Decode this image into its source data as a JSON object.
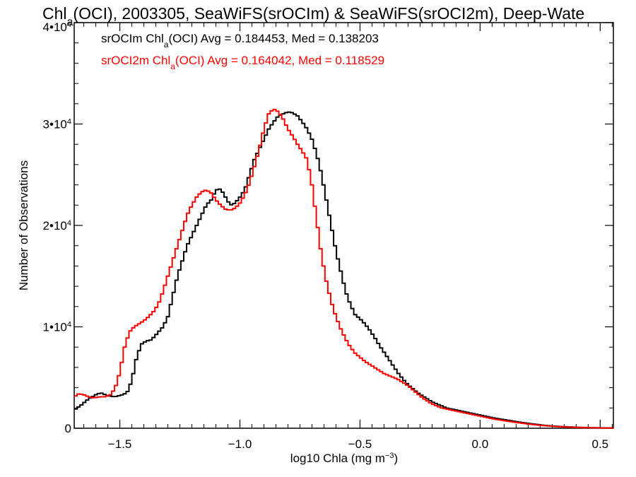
{
  "chart_data": {
    "type": "line",
    "title": "Chla(OCI), 2003305, SeaWiFS(srOCIm) & SeaWiFS(srOCI2m), Deep-Wate",
    "xlabel": "log10 Chla (mg m-3)",
    "ylabel": "Number of Observations",
    "xlim": [
      -1.69,
      0.555
    ],
    "ylim": [
      0,
      40000
    ],
    "x_ticks": [
      -1.5,
      -1.0,
      -0.5,
      0.0,
      0.5
    ],
    "x_tick_labels": [
      "−1.5",
      "−1.0",
      "−0.5",
      "0.0",
      "0.5"
    ],
    "y_ticks": [
      0,
      10000,
      20000,
      30000,
      40000
    ],
    "y_tick_labels": [
      "0",
      "1•10^4",
      "2•10^4",
      "3•10^4",
      "4•10^4"
    ],
    "grid": false,
    "legend_placement": "top-left",
    "series": [
      {
        "name": "srOCIm Chla(OCI) Avg = 0.184453, Med = 0.138203",
        "color": "#000000",
        "points": [
          [
            -1.69,
            1800
          ],
          [
            -1.66,
            2300
          ],
          [
            -1.63,
            2900
          ],
          [
            -1.6,
            3300
          ],
          [
            -1.58,
            3500
          ],
          [
            -1.55,
            3200
          ],
          [
            -1.52,
            3100
          ],
          [
            -1.49,
            3300
          ],
          [
            -1.47,
            3500
          ],
          [
            -1.45,
            4700
          ],
          [
            -1.43,
            7000
          ],
          [
            -1.41,
            8300
          ],
          [
            -1.39,
            8600
          ],
          [
            -1.37,
            8700
          ],
          [
            -1.35,
            9200
          ],
          [
            -1.32,
            10000
          ],
          [
            -1.3,
            11000
          ],
          [
            -1.28,
            13000
          ],
          [
            -1.26,
            15000
          ],
          [
            -1.24,
            16500
          ],
          [
            -1.22,
            18000
          ],
          [
            -1.2,
            19000
          ],
          [
            -1.18,
            20000
          ],
          [
            -1.16,
            21000
          ],
          [
            -1.14,
            22000
          ],
          [
            -1.12,
            22500
          ],
          [
            -1.1,
            23500
          ],
          [
            -1.08,
            23600
          ],
          [
            -1.06,
            22800
          ],
          [
            -1.04,
            22000
          ],
          [
            -1.02,
            22200
          ],
          [
            -1.0,
            22800
          ],
          [
            -0.98,
            23500
          ],
          [
            -0.96,
            25000
          ],
          [
            -0.94,
            26500
          ],
          [
            -0.92,
            27500
          ],
          [
            -0.9,
            28500
          ],
          [
            -0.88,
            29500
          ],
          [
            -0.86,
            30200
          ],
          [
            -0.84,
            30800
          ],
          [
            -0.82,
            31000
          ],
          [
            -0.8,
            31200
          ],
          [
            -0.78,
            31100
          ],
          [
            -0.76,
            30800
          ],
          [
            -0.74,
            30200
          ],
          [
            -0.72,
            29500
          ],
          [
            -0.7,
            28500
          ],
          [
            -0.68,
            27000
          ],
          [
            -0.66,
            25000
          ],
          [
            -0.64,
            22500
          ],
          [
            -0.62,
            20000
          ],
          [
            -0.6,
            17500
          ],
          [
            -0.58,
            15500
          ],
          [
            -0.56,
            13500
          ],
          [
            -0.54,
            12200
          ],
          [
            -0.52,
            11200
          ],
          [
            -0.5,
            10800
          ],
          [
            -0.48,
            10300
          ],
          [
            -0.46,
            9700
          ],
          [
            -0.44,
            9000
          ],
          [
            -0.42,
            8200
          ],
          [
            -0.4,
            7500
          ],
          [
            -0.38,
            6800
          ],
          [
            -0.36,
            6100
          ],
          [
            -0.34,
            5400
          ],
          [
            -0.32,
            4800
          ],
          [
            -0.3,
            4300
          ],
          [
            -0.28,
            3900
          ],
          [
            -0.26,
            3500
          ],
          [
            -0.24,
            3200
          ],
          [
            -0.22,
            2900
          ],
          [
            -0.2,
            2600
          ],
          [
            -0.18,
            2400
          ],
          [
            -0.16,
            2200
          ],
          [
            -0.14,
            2000
          ],
          [
            -0.12,
            1900
          ],
          [
            -0.1,
            1800
          ],
          [
            -0.08,
            1700
          ],
          [
            -0.06,
            1600
          ],
          [
            -0.04,
            1500
          ],
          [
            -0.02,
            1400
          ],
          [
            0.0,
            1300
          ],
          [
            0.03,
            1150
          ],
          [
            0.06,
            1000
          ],
          [
            0.1,
            850
          ],
          [
            0.15,
            650
          ],
          [
            0.2,
            480
          ],
          [
            0.25,
            330
          ],
          [
            0.3,
            220
          ],
          [
            0.35,
            150
          ],
          [
            0.4,
            100
          ],
          [
            0.45,
            60
          ],
          [
            0.5,
            40
          ],
          [
            0.555,
            30
          ]
        ]
      },
      {
        "name": "srOCI2m Chla(OCI) Avg = 0.164042, Med = 0.118529",
        "color": "#ff0000",
        "points": [
          [
            -1.69,
            3100
          ],
          [
            -1.67,
            3400
          ],
          [
            -1.65,
            3300
          ],
          [
            -1.63,
            3100
          ],
          [
            -1.61,
            3000
          ],
          [
            -1.58,
            3100
          ],
          [
            -1.56,
            3100
          ],
          [
            -1.54,
            3300
          ],
          [
            -1.52,
            3900
          ],
          [
            -1.5,
            5500
          ],
          [
            -1.48,
            8000
          ],
          [
            -1.46,
            9500
          ],
          [
            -1.44,
            10000
          ],
          [
            -1.42,
            10300
          ],
          [
            -1.4,
            10600
          ],
          [
            -1.38,
            11000
          ],
          [
            -1.36,
            11500
          ],
          [
            -1.34,
            12200
          ],
          [
            -1.32,
            13500
          ],
          [
            -1.3,
            15000
          ],
          [
            -1.28,
            16500
          ],
          [
            -1.26,
            18000
          ],
          [
            -1.24,
            19500
          ],
          [
            -1.22,
            21000
          ],
          [
            -1.2,
            22000
          ],
          [
            -1.18,
            22800
          ],
          [
            -1.16,
            23300
          ],
          [
            -1.14,
            23500
          ],
          [
            -1.12,
            23200
          ],
          [
            -1.1,
            22500
          ],
          [
            -1.08,
            22000
          ],
          [
            -1.06,
            21600
          ],
          [
            -1.04,
            21500
          ],
          [
            -1.02,
            21700
          ],
          [
            -1.0,
            22200
          ],
          [
            -0.98,
            23000
          ],
          [
            -0.96,
            24200
          ],
          [
            -0.94,
            25800
          ],
          [
            -0.92,
            27500
          ],
          [
            -0.9,
            29500
          ],
          [
            -0.88,
            31000
          ],
          [
            -0.86,
            31500
          ],
          [
            -0.84,
            31200
          ],
          [
            -0.82,
            30500
          ],
          [
            -0.8,
            29500
          ],
          [
            -0.78,
            28800
          ],
          [
            -0.76,
            28000
          ],
          [
            -0.74,
            27300
          ],
          [
            -0.72,
            26500
          ],
          [
            -0.7,
            24000
          ],
          [
            -0.68,
            20500
          ],
          [
            -0.66,
            17000
          ],
          [
            -0.64,
            14500
          ],
          [
            -0.62,
            12500
          ],
          [
            -0.6,
            11000
          ],
          [
            -0.58,
            9800
          ],
          [
            -0.56,
            8800
          ],
          [
            -0.54,
            8000
          ],
          [
            -0.52,
            7400
          ],
          [
            -0.5,
            7000
          ],
          [
            -0.48,
            6600
          ],
          [
            -0.46,
            6300
          ],
          [
            -0.44,
            6000
          ],
          [
            -0.42,
            5700
          ],
          [
            -0.4,
            5400
          ],
          [
            -0.38,
            5200
          ],
          [
            -0.36,
            5000
          ],
          [
            -0.34,
            4800
          ],
          [
            -0.32,
            4500
          ],
          [
            -0.3,
            4200
          ],
          [
            -0.28,
            3800
          ],
          [
            -0.26,
            3400
          ],
          [
            -0.24,
            3000
          ],
          [
            -0.22,
            2700
          ],
          [
            -0.2,
            2400
          ],
          [
            -0.18,
            2200
          ],
          [
            -0.16,
            2000
          ],
          [
            -0.14,
            1900
          ],
          [
            -0.12,
            1800
          ],
          [
            -0.1,
            1700
          ],
          [
            -0.08,
            1600
          ],
          [
            -0.06,
            1500
          ],
          [
            -0.04,
            1400
          ],
          [
            -0.02,
            1300
          ],
          [
            0.0,
            1200
          ],
          [
            0.03,
            1050
          ],
          [
            0.06,
            900
          ],
          [
            0.1,
            750
          ],
          [
            0.15,
            580
          ],
          [
            0.2,
            420
          ],
          [
            0.25,
            290
          ],
          [
            0.3,
            190
          ],
          [
            0.35,
            130
          ],
          [
            0.4,
            80
          ],
          [
            0.45,
            50
          ],
          [
            0.5,
            30
          ],
          [
            0.555,
            20
          ]
        ]
      }
    ]
  }
}
